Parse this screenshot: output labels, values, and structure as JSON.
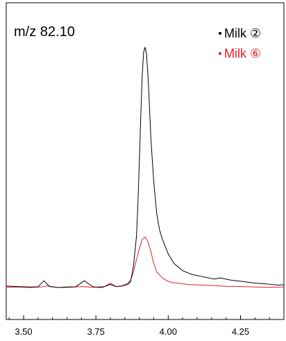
{
  "chart_data": {
    "type": "line",
    "title": "m/z 82.10",
    "xlabel": "",
    "ylabel": "",
    "xlim": [
      3.44,
      4.4
    ],
    "ylim": [
      0,
      1
    ],
    "xticks": [
      3.5,
      3.75,
      4.0,
      4.25
    ],
    "xtick_labels": [
      "3.50",
      "3.75",
      "4.00",
      "4.25"
    ],
    "grid": false,
    "legend_position": "top-right",
    "series": [
      {
        "name": "Milk ②",
        "color": "#000000",
        "x": [
          3.44,
          3.48,
          3.52,
          3.55,
          3.57,
          3.59,
          3.62,
          3.65,
          3.68,
          3.71,
          3.74,
          3.77,
          3.8,
          3.82,
          3.84,
          3.86,
          3.87,
          3.88,
          3.89,
          3.895,
          3.9,
          3.905,
          3.91,
          3.915,
          3.92,
          3.925,
          3.93,
          3.935,
          3.94,
          3.95,
          3.96,
          3.97,
          3.98,
          3.99,
          4.0,
          4.02,
          4.05,
          4.08,
          4.12,
          4.16,
          4.18,
          4.22,
          4.26,
          4.3,
          4.34,
          4.38,
          4.4
        ],
        "y": [
          0.006,
          0.004,
          0.002,
          0.003,
          0.028,
          0.004,
          0.0,
          0.002,
          0.003,
          0.028,
          0.003,
          0.0,
          0.013,
          0.004,
          0.006,
          0.013,
          0.025,
          0.09,
          0.21,
          0.34,
          0.52,
          0.71,
          0.88,
          0.98,
          1.0,
          0.97,
          0.88,
          0.76,
          0.62,
          0.44,
          0.31,
          0.24,
          0.2,
          0.17,
          0.14,
          0.1,
          0.07,
          0.055,
          0.045,
          0.035,
          0.04,
          0.03,
          0.025,
          0.018,
          0.015,
          0.01,
          0.012
        ]
      },
      {
        "name": "Milk ⑥",
        "color": "#e41e26",
        "x": [
          3.44,
          3.48,
          3.52,
          3.56,
          3.58,
          3.62,
          3.66,
          3.7,
          3.74,
          3.78,
          3.8,
          3.82,
          3.84,
          3.86,
          3.87,
          3.88,
          3.89,
          3.9,
          3.91,
          3.92,
          3.93,
          3.94,
          3.95,
          3.96,
          3.98,
          4.0,
          4.02,
          4.05,
          4.08,
          4.12,
          4.16,
          4.2,
          4.25,
          4.3,
          4.35,
          4.4
        ],
        "y": [
          0.001,
          0.002,
          0.0,
          0.002,
          0.007,
          0.0,
          0.001,
          0.004,
          0.001,
          0.004,
          0.018,
          0.004,
          0.007,
          0.018,
          0.03,
          0.065,
          0.115,
          0.16,
          0.2,
          0.21,
          0.19,
          0.15,
          0.1,
          0.065,
          0.04,
          0.025,
          0.02,
          0.015,
          0.012,
          0.01,
          0.008,
          0.005,
          0.004,
          0.002,
          0.001,
          0.002
        ]
      }
    ]
  }
}
